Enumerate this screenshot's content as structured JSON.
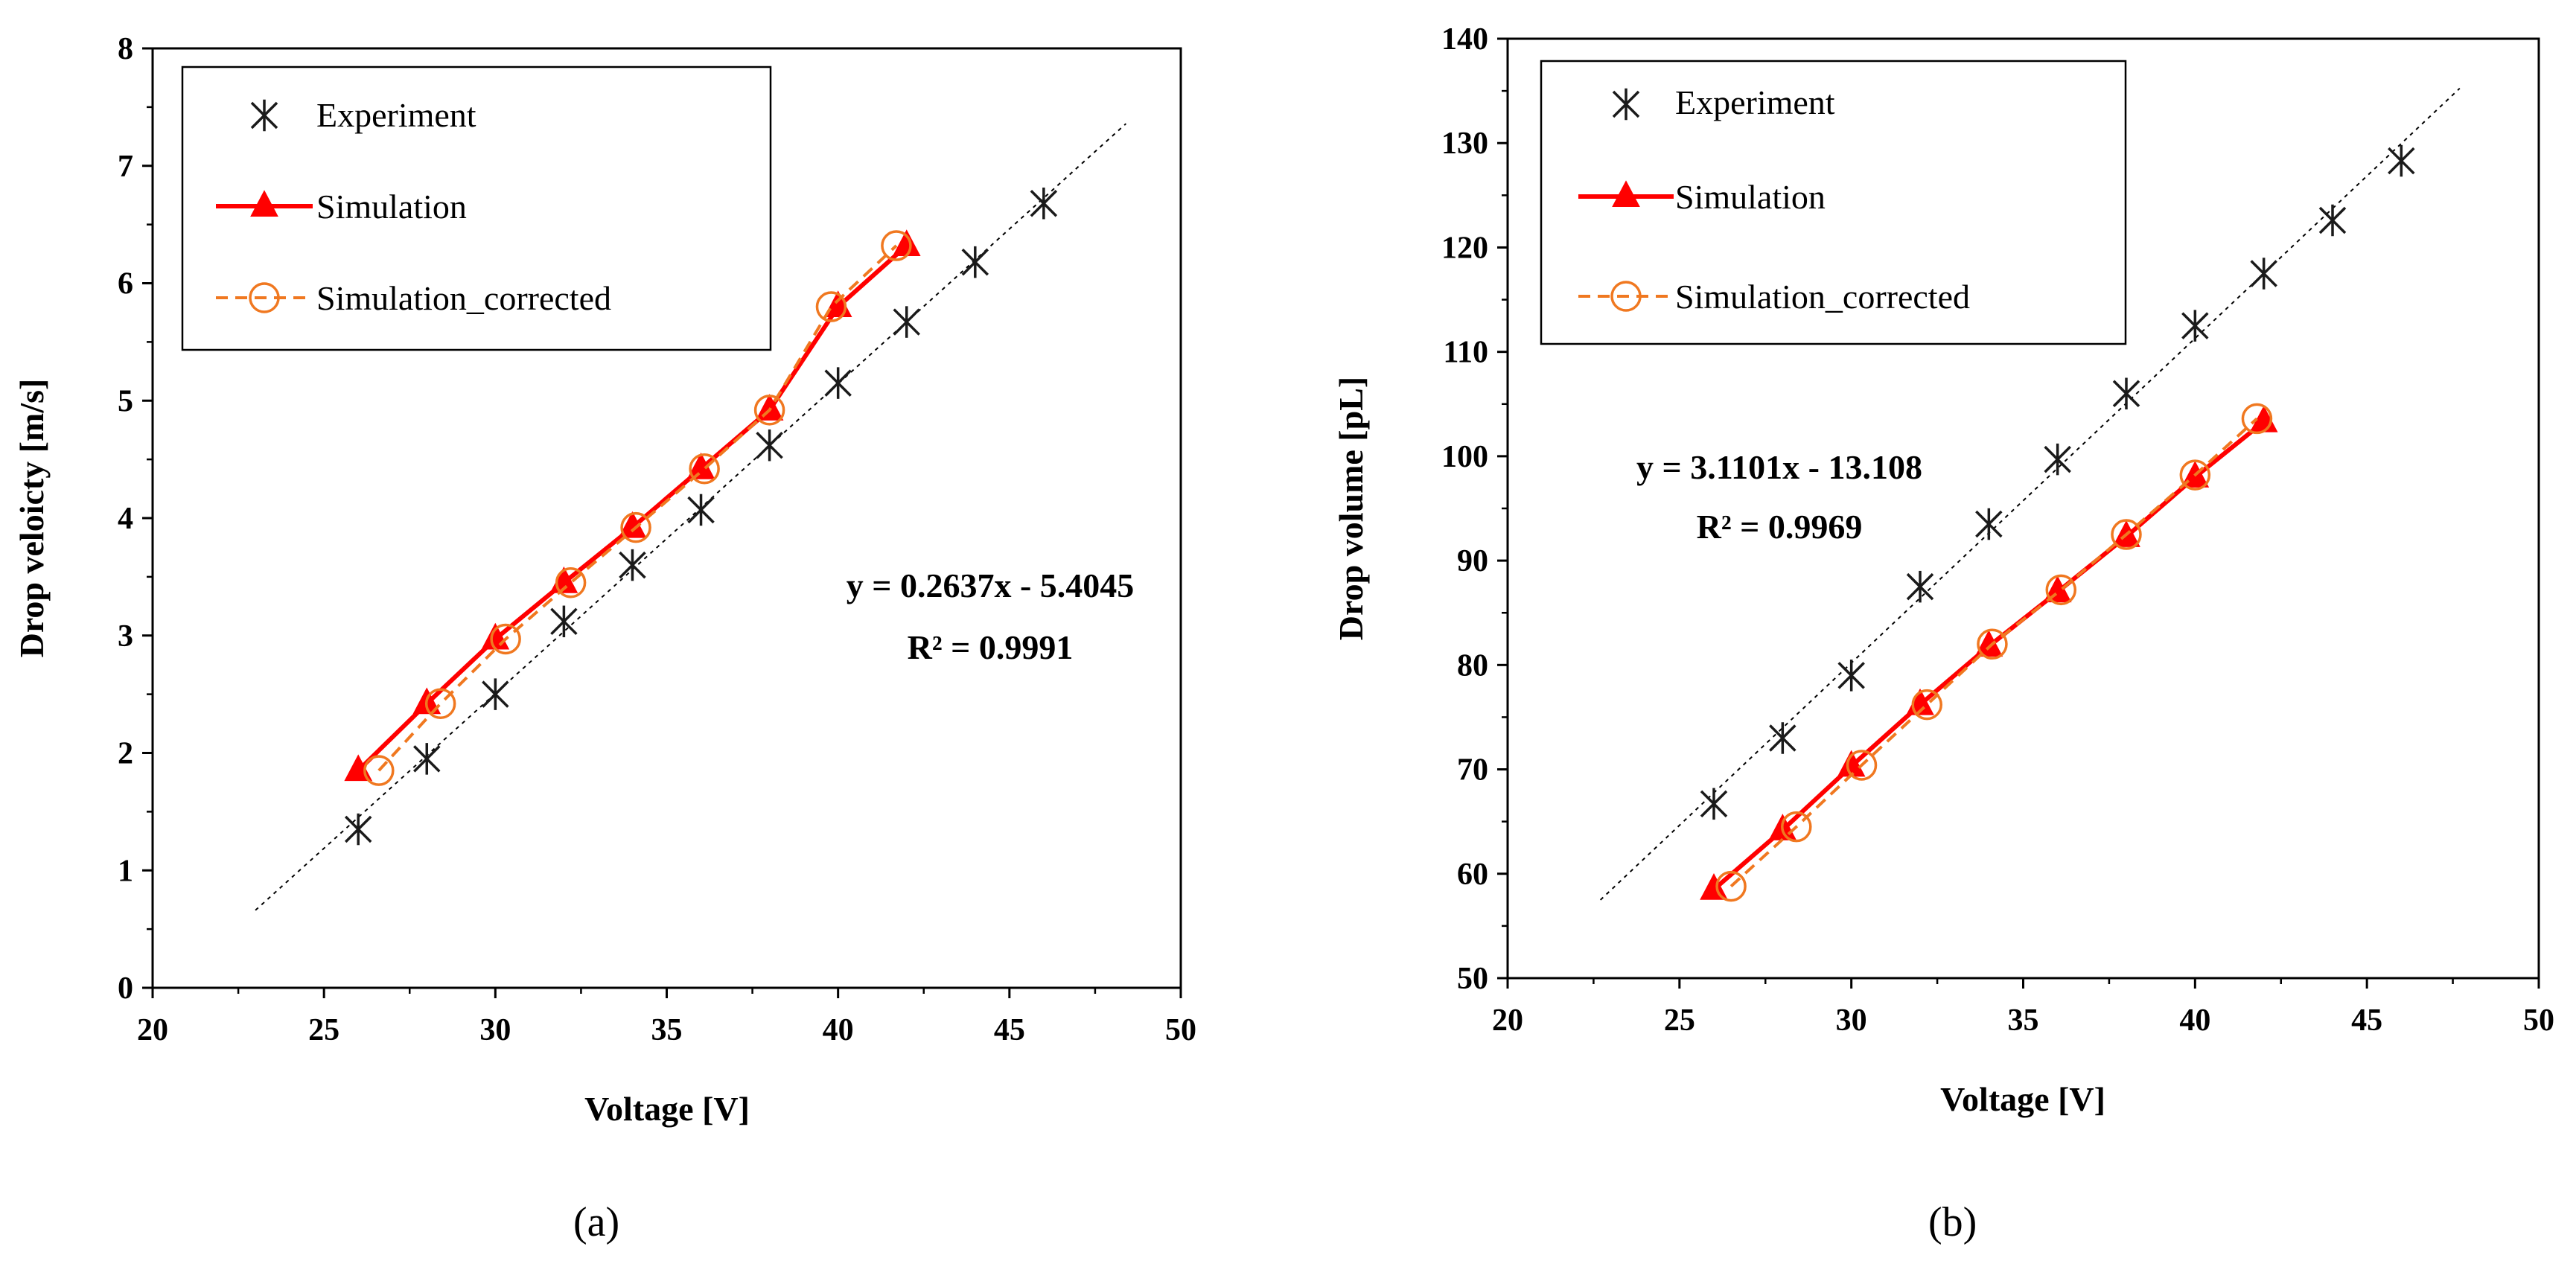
{
  "colors": {
    "experiment": "#1a1a1a",
    "simulation": "#ff0000",
    "simulation_corrected": "#f07820",
    "trendline": "#000000"
  },
  "chart_data": [
    {
      "type": "line",
      "panel_label": "(a)",
      "xlabel": "Voltage [V]",
      "ylabel": "Drop veloicty [m/s]",
      "xlim": [
        20,
        50
      ],
      "ylim": [
        0,
        8
      ],
      "xticks": [
        20,
        25,
        30,
        35,
        40,
        45,
        50
      ],
      "yticks": [
        0,
        1,
        2,
        3,
        4,
        5,
        6,
        7,
        8
      ],
      "legend": [
        "Experiment",
        "Simulation",
        "Simulation_corrected"
      ],
      "legend_position": "top-left",
      "series": [
        {
          "name": "Experiment",
          "marker": "asterisk",
          "line": "none",
          "x": [
            26,
            28,
            30,
            32,
            34,
            36,
            38,
            40,
            42,
            44,
            46
          ],
          "y": [
            1.35,
            1.95,
            2.5,
            3.12,
            3.6,
            4.07,
            4.62,
            5.15,
            5.67,
            6.18,
            6.68
          ]
        },
        {
          "name": "Simulation",
          "marker": "triangle",
          "line": "solid",
          "x": [
            26,
            28,
            30,
            32,
            34,
            36,
            38,
            40,
            42
          ],
          "y": [
            1.85,
            2.42,
            2.97,
            3.45,
            3.92,
            4.42,
            4.92,
            5.8,
            6.32
          ]
        },
        {
          "name": "Simulation_corrected",
          "marker": "circle",
          "line": "dashed",
          "x": [
            26.6,
            28.4,
            30.3,
            32.2,
            34.1,
            36.1,
            38.0,
            39.8,
            41.7
          ],
          "y": [
            1.85,
            2.42,
            2.97,
            3.45,
            3.92,
            4.42,
            4.92,
            5.8,
            6.32
          ]
        }
      ],
      "trendline": {
        "slope": 0.2637,
        "intercept": -5.4045,
        "x_range": [
          23,
          48.4
        ]
      },
      "annotation": {
        "line1": "y = 0.2637x - 5.4045",
        "line2": "R² = 0.9991"
      }
    },
    {
      "type": "line",
      "panel_label": "(b)",
      "xlabel": "Voltage [V]",
      "ylabel": "Drop volume [pL]",
      "xlim": [
        20,
        50
      ],
      "ylim": [
        50,
        140
      ],
      "xticks": [
        20,
        25,
        30,
        35,
        40,
        45,
        50
      ],
      "yticks": [
        50,
        60,
        70,
        80,
        90,
        100,
        110,
        120,
        130,
        140
      ],
      "legend": [
        "Experiment",
        "Simulation",
        "Simulation_corrected"
      ],
      "legend_position": "top-left",
      "series": [
        {
          "name": "Experiment",
          "marker": "asterisk",
          "line": "none",
          "x": [
            26,
            28,
            30,
            32,
            34,
            36,
            38,
            40,
            42,
            44,
            46
          ],
          "y": [
            66.7,
            73.0,
            79.0,
            87.5,
            93.5,
            99.7,
            106.0,
            112.5,
            117.5,
            122.6,
            128.3
          ]
        },
        {
          "name": "Simulation",
          "marker": "triangle",
          "line": "solid",
          "x": [
            26,
            28,
            30,
            32,
            34,
            36,
            38,
            40,
            42
          ],
          "y": [
            58.5,
            64.2,
            70.3,
            76.2,
            81.8,
            87.0,
            92.3,
            98.0,
            103.3
          ]
        },
        {
          "name": "Simulation_corrected",
          "marker": "circle",
          "line": "dashed",
          "x": [
            26.5,
            28.4,
            30.3,
            32.2,
            34.1,
            36.1,
            38.0,
            40.0,
            41.8
          ],
          "y": [
            58.8,
            64.5,
            70.4,
            76.2,
            82.0,
            87.2,
            92.5,
            98.2,
            103.6
          ]
        }
      ],
      "trendline": {
        "slope": 3.1101,
        "intercept": -13.108,
        "x_range": [
          22.7,
          47.7
        ]
      },
      "annotation": {
        "line1": "y = 3.1101x - 13.108",
        "line2": "R² = 0.9969"
      }
    }
  ]
}
